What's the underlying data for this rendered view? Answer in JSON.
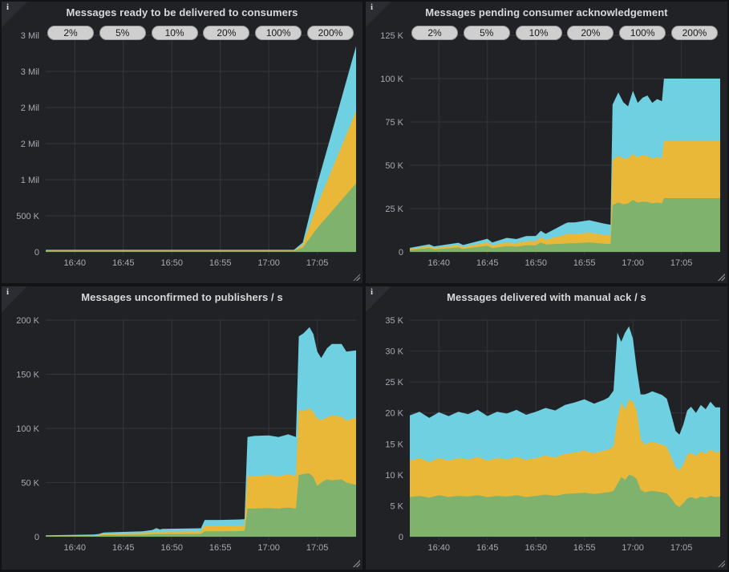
{
  "icons": {
    "info": "i",
    "resize": "diagonal-grip"
  },
  "colors": {
    "page_bg": "#121317",
    "panel_bg": "#212226",
    "grid": "#34363b",
    "tick_text": "#a7aab1",
    "title_text": "#d8d9da",
    "pill_bg": "#cfcfcf",
    "pill_text": "#1a1a1a",
    "series_green": "#7EB26D",
    "series_yellow": "#EAB839",
    "series_cyan": "#6ED0E0"
  },
  "chart_data": [
    {
      "type": "area",
      "stacked": true,
      "title": "Messages ready to be delivered to consumers",
      "buttons": [
        "2%",
        "5%",
        "10%",
        "20%",
        "100%",
        "200%"
      ],
      "grid": true,
      "legend_position": "none",
      "xlim": [
        0,
        32
      ],
      "x_ticks": [
        {
          "t": 3,
          "label": "16:40"
        },
        {
          "t": 8,
          "label": "16:45"
        },
        {
          "t": 13,
          "label": "16:50"
        },
        {
          "t": 18,
          "label": "16:55"
        },
        {
          "t": 23,
          "label": "17:00"
        },
        {
          "t": 28,
          "label": "17:05"
        }
      ],
      "ylim": [
        0,
        3000000
      ],
      "y_ticks": [
        {
          "v": 0,
          "label": "0"
        },
        {
          "v": 500000,
          "label": "500 K"
        },
        {
          "v": 1000000,
          "label": "1 Mil"
        },
        {
          "v": 1500000,
          "label": "2 Mil"
        },
        {
          "v": 2000000,
          "label": "2 Mil"
        },
        {
          "v": 2500000,
          "label": "3 Mil"
        },
        {
          "v": 3000000,
          "label": "3 Mil"
        }
      ],
      "series": [
        {
          "name": "green",
          "color": "#7EB26D",
          "x": [
            0,
            25.6,
            26.5,
            28,
            30,
            32
          ],
          "y": [
            15000,
            15000,
            60000,
            330000,
            640000,
            950000
          ]
        },
        {
          "name": "yellow",
          "color": "#EAB839",
          "x": [
            0,
            25.6,
            26.5,
            28,
            30,
            32
          ],
          "y": [
            6000,
            6000,
            40000,
            320000,
            660000,
            1000000
          ]
        },
        {
          "name": "cyan",
          "color": "#6ED0E0",
          "x": [
            0,
            25.6,
            26.5,
            28,
            30,
            32
          ],
          "y": [
            8000,
            8000,
            30000,
            290000,
            590000,
            900000
          ]
        }
      ]
    },
    {
      "type": "area",
      "stacked": true,
      "title": "Messages pending consumer acknowledgement",
      "buttons": [
        "2%",
        "5%",
        "10%",
        "20%",
        "100%",
        "200%"
      ],
      "grid": true,
      "legend_position": "none",
      "xlim": [
        0,
        32
      ],
      "x_ticks": [
        {
          "t": 3,
          "label": "16:40"
        },
        {
          "t": 8,
          "label": "16:45"
        },
        {
          "t": 13,
          "label": "16:50"
        },
        {
          "t": 18,
          "label": "16:55"
        },
        {
          "t": 23,
          "label": "17:00"
        },
        {
          "t": 28,
          "label": "17:05"
        }
      ],
      "ylim": [
        0,
        125000
      ],
      "y_ticks": [
        {
          "v": 0,
          "label": "0"
        },
        {
          "v": 25000,
          "label": "25 K"
        },
        {
          "v": 50000,
          "label": "50 K"
        },
        {
          "v": 75000,
          "label": "75 K"
        },
        {
          "v": 100000,
          "label": "100 K"
        },
        {
          "v": 125000,
          "label": "125 K"
        }
      ],
      "series": [
        {
          "name": "green",
          "color": "#7EB26D",
          "x": [
            0,
            2,
            2.5,
            5,
            5.5,
            8,
            8.5,
            10,
            11,
            12,
            13,
            13.5,
            14,
            16,
            16.3,
            17,
            18.5,
            20,
            20.7,
            20.9,
            21.5,
            22,
            22.5,
            23,
            23.5,
            24,
            24.5,
            25,
            25.5,
            26,
            26.2,
            27,
            30,
            32
          ],
          "y": [
            1000,
            2200,
            1400,
            2600,
            1700,
            3600,
            2200,
            3400,
            3000,
            3900,
            3800,
            5500,
            4300,
            4800,
            5000,
            5000,
            5500,
            4700,
            4500,
            27000,
            28500,
            27500,
            28000,
            30000,
            28500,
            29000,
            28800,
            28000,
            28500,
            28000,
            31000,
            31000,
            31000,
            31000
          ]
        },
        {
          "name": "yellow",
          "color": "#EAB839",
          "x": [
            0,
            2,
            2.5,
            5,
            5.5,
            8,
            8.5,
            10,
            11,
            12,
            13,
            13.5,
            14,
            16,
            16.3,
            17,
            18.5,
            20,
            20.7,
            20.9,
            21.5,
            22,
            22.5,
            23,
            23.5,
            24,
            24.5,
            25,
            25.5,
            26,
            26.2,
            27,
            30,
            32
          ],
          "y": [
            700,
            1100,
            900,
            1300,
            1100,
            1900,
            1500,
            2100,
            2000,
            2300,
            2400,
            2900,
            2700,
            5000,
            5200,
            5200,
            5600,
            5100,
            5000,
            26000,
            27000,
            26500,
            26000,
            26500,
            26000,
            27000,
            26500,
            26000,
            26200,
            26000,
            33000,
            33000,
            33000,
            33000
          ]
        },
        {
          "name": "cyan",
          "color": "#6ED0E0",
          "x": [
            0,
            2,
            2.5,
            5,
            5.5,
            8,
            8.5,
            10,
            11,
            12,
            13,
            13.5,
            14,
            16,
            16.3,
            17,
            18.5,
            20,
            20.7,
            20.9,
            21.5,
            22,
            22.5,
            23,
            23.5,
            24,
            24.5,
            25,
            25.5,
            26,
            26.2,
            27,
            30,
            32
          ],
          "y": [
            600,
            1100,
            900,
            1400,
            1200,
            2100,
            1700,
            2600,
            2400,
            2900,
            3000,
            3800,
            3400,
            6500,
            6800,
            6800,
            7200,
            6600,
            6200,
            32000,
            36500,
            32500,
            30000,
            36500,
            31500,
            33000,
            35000,
            32000,
            33500,
            33000,
            36000,
            36000,
            36000,
            36000
          ]
        }
      ]
    },
    {
      "type": "area",
      "stacked": true,
      "title": "Messages unconfirmed to publishers / s",
      "buttons": [],
      "grid": true,
      "legend_position": "none",
      "xlim": [
        0,
        32
      ],
      "x_ticks": [
        {
          "t": 3,
          "label": "16:40"
        },
        {
          "t": 8,
          "label": "16:45"
        },
        {
          "t": 13,
          "label": "16:50"
        },
        {
          "t": 18,
          "label": "16:55"
        },
        {
          "t": 23,
          "label": "17:00"
        },
        {
          "t": 28,
          "label": "17:05"
        }
      ],
      "ylim": [
        0,
        200000
      ],
      "y_ticks": [
        {
          "v": 0,
          "label": "0"
        },
        {
          "v": 50000,
          "label": "50 K"
        },
        {
          "v": 100000,
          "label": "100 K"
        },
        {
          "v": 150000,
          "label": "150 K"
        },
        {
          "v": 200000,
          "label": "200 K"
        }
      ],
      "series": [
        {
          "name": "green",
          "color": "#7EB26D",
          "x": [
            0,
            5,
            5.5,
            6,
            10,
            11,
            11.4,
            11.8,
            12,
            16,
            16.4,
            18,
            20,
            20.5,
            20.8,
            21.5,
            23,
            24,
            25,
            25.8,
            26.1,
            26.6,
            27.2,
            27.6,
            28,
            28.4,
            29,
            29.5,
            30.5,
            31,
            32
          ],
          "y": [
            500,
            700,
            900,
            1500,
            1800,
            2200,
            2600,
            2300,
            2500,
            2600,
            5000,
            5000,
            5200,
            5500,
            26000,
            26000,
            26500,
            26000,
            27000,
            26000,
            57000,
            58000,
            58500,
            55000,
            47000,
            50000,
            53000,
            52000,
            53000,
            50000,
            48000
          ]
        },
        {
          "name": "yellow",
          "color": "#EAB839",
          "x": [
            0,
            5,
            5.5,
            6,
            10,
            11,
            11.4,
            11.8,
            12,
            16,
            16.4,
            18,
            20,
            20.5,
            20.8,
            21.5,
            23,
            24,
            25,
            25.8,
            26.1,
            26.6,
            27.2,
            27.6,
            28,
            28.4,
            29,
            29.5,
            30.5,
            31,
            32
          ],
          "y": [
            400,
            600,
            800,
            1200,
            1500,
            1800,
            2200,
            1900,
            2200,
            2300,
            5000,
            5000,
            5100,
            5200,
            30000,
            30000,
            30500,
            30000,
            30500,
            30000,
            60000,
            58000,
            60000,
            60000,
            62000,
            58000,
            57000,
            60000,
            58000,
            57000,
            62000
          ]
        },
        {
          "name": "cyan",
          "color": "#6ED0E0",
          "x": [
            0,
            5,
            5.5,
            6,
            10,
            11,
            11.4,
            11.8,
            12,
            16,
            16.4,
            18,
            20,
            20.5,
            20.8,
            21.5,
            23,
            24,
            25,
            25.8,
            26.1,
            26.6,
            27.2,
            27.6,
            28,
            28.4,
            29,
            29.5,
            30.5,
            31,
            32
          ],
          "y": [
            400,
            700,
            900,
            1200,
            1700,
            2200,
            3200,
            2400,
            2500,
            2900,
            5500,
            5500,
            5600,
            5500,
            36000,
            37000,
            36500,
            36000,
            37000,
            36000,
            68000,
            72000,
            75000,
            72000,
            62000,
            57000,
            64000,
            66000,
            67000,
            64000,
            62000
          ]
        }
      ]
    },
    {
      "type": "area",
      "stacked": true,
      "title": "Messages delivered with manual ack / s",
      "buttons": [],
      "grid": true,
      "legend_position": "none",
      "xlim": [
        0,
        32
      ],
      "x_ticks": [
        {
          "t": 3,
          "label": "16:40"
        },
        {
          "t": 8,
          "label": "16:45"
        },
        {
          "t": 13,
          "label": "16:50"
        },
        {
          "t": 18,
          "label": "16:55"
        },
        {
          "t": 23,
          "label": "17:00"
        },
        {
          "t": 28,
          "label": "17:05"
        }
      ],
      "ylim": [
        0,
        35000
      ],
      "y_ticks": [
        {
          "v": 0,
          "label": "0"
        },
        {
          "v": 5000,
          "label": "5 K"
        },
        {
          "v": 10000,
          "label": "10 K"
        },
        {
          "v": 15000,
          "label": "15 K"
        },
        {
          "v": 20000,
          "label": "20 K"
        },
        {
          "v": 25000,
          "label": "25 K"
        },
        {
          "v": 30000,
          "label": "30 K"
        },
        {
          "v": 35000,
          "label": "35 K"
        }
      ],
      "series": [
        {
          "name": "green",
          "color": "#7EB26D",
          "x": [
            0,
            1,
            2,
            3,
            4,
            5,
            6,
            7,
            8,
            9,
            10,
            11,
            12,
            13,
            14,
            15,
            16,
            17,
            18,
            19,
            20,
            20.5,
            21,
            21.4,
            21.8,
            22.2,
            22.6,
            23,
            23.4,
            23.8,
            24.2,
            24.6,
            25,
            25.5,
            26,
            26.5,
            27,
            27.4,
            27.8,
            28.2,
            28.6,
            29,
            29.5,
            30,
            30.5,
            31,
            31.5,
            32
          ],
          "y": [
            6400,
            6600,
            6300,
            6700,
            6400,
            6600,
            6500,
            6700,
            6400,
            6600,
            6500,
            6700,
            6400,
            6600,
            6800,
            6600,
            6900,
            7000,
            7100,
            6900,
            7100,
            7200,
            7400,
            8500,
            9600,
            9200,
            10000,
            9800,
            9300,
            7600,
            7200,
            7300,
            7400,
            7300,
            7200,
            7000,
            6100,
            5200,
            4800,
            5400,
            6200,
            6400,
            6100,
            6500,
            6300,
            6600,
            6400,
            6500
          ]
        },
        {
          "name": "yellow",
          "color": "#EAB839",
          "x": [
            0,
            1,
            2,
            3,
            4,
            5,
            6,
            7,
            8,
            9,
            10,
            11,
            12,
            13,
            14,
            15,
            16,
            17,
            18,
            19,
            20,
            20.5,
            21,
            21.4,
            21.8,
            22.2,
            22.6,
            23,
            23.4,
            23.8,
            24.2,
            24.6,
            25,
            25.5,
            26,
            26.5,
            27,
            27.4,
            27.8,
            28.2,
            28.6,
            29,
            29.5,
            30,
            30.5,
            31,
            31.5,
            32
          ],
          "y": [
            5900,
            6100,
            5800,
            6000,
            5900,
            6100,
            6000,
            6200,
            5900,
            6100,
            6000,
            6200,
            6000,
            6100,
            6300,
            6200,
            6500,
            6600,
            6800,
            6600,
            6800,
            6900,
            7200,
            10500,
            12000,
            11300,
            12200,
            12000,
            11000,
            8200,
            7700,
            7800,
            7900,
            7800,
            7700,
            7500,
            6600,
            6000,
            5900,
            6300,
            7000,
            7200,
            6900,
            7300,
            7100,
            7500,
            7200,
            7300
          ]
        },
        {
          "name": "cyan",
          "color": "#6ED0E0",
          "x": [
            0,
            1,
            2,
            3,
            4,
            5,
            6,
            7,
            8,
            9,
            10,
            11,
            12,
            13,
            14,
            15,
            16,
            17,
            18,
            19,
            20,
            20.5,
            21,
            21.4,
            21.8,
            22.2,
            22.6,
            23,
            23.4,
            23.8,
            24.2,
            24.6,
            25,
            25.5,
            26,
            26.5,
            27,
            27.4,
            27.8,
            28.2,
            28.6,
            29,
            29.5,
            30,
            30.5,
            31,
            31.5,
            32
          ],
          "y": [
            7300,
            7500,
            7100,
            7400,
            7200,
            7500,
            7300,
            7600,
            7200,
            7500,
            7400,
            7600,
            7300,
            7500,
            7700,
            7600,
            7900,
            8100,
            8300,
            8000,
            8200,
            8400,
            9000,
            14000,
            9900,
            12500,
            11800,
            10200,
            6700,
            7200,
            8100,
            8100,
            8200,
            8100,
            8000,
            7800,
            6800,
            5900,
            5800,
            6400,
            7200,
            7400,
            7000,
            7500,
            7200,
            7700,
            7300,
            7100
          ]
        }
      ]
    }
  ]
}
